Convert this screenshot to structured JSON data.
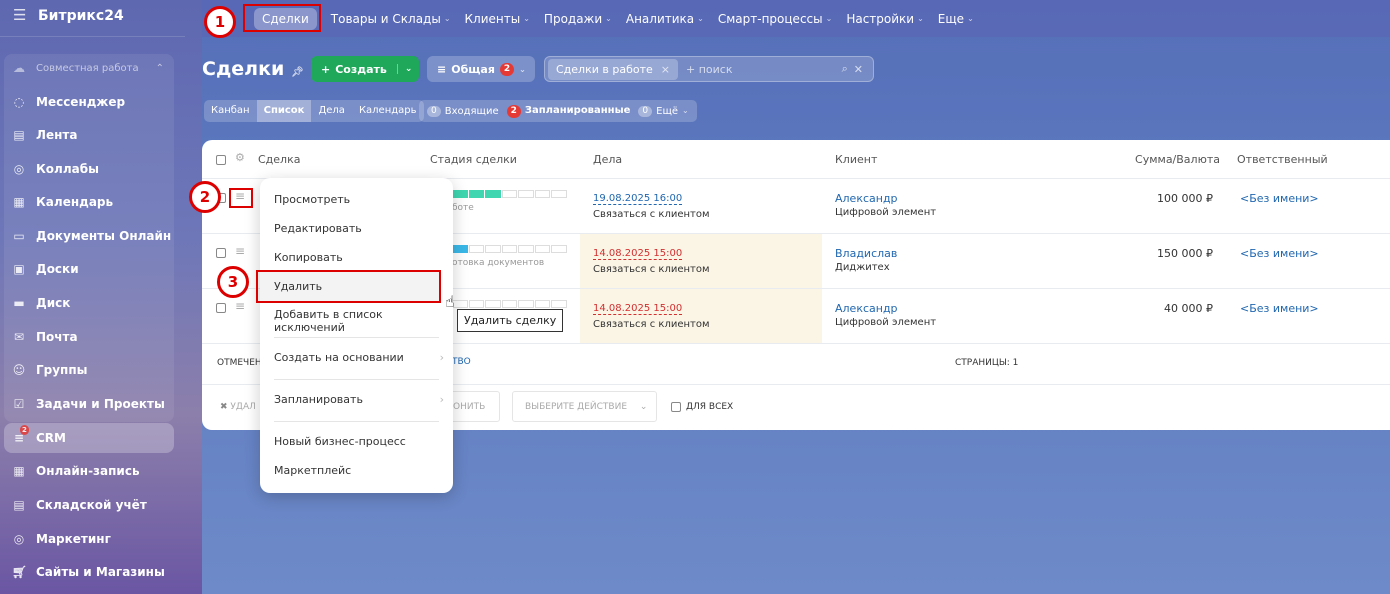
{
  "app": {
    "logo": "Битрикс24"
  },
  "sidebar": {
    "items": [
      {
        "label": "Совместная работа",
        "icon": "collab-icon"
      },
      {
        "label": "Мессенджер",
        "icon": "chat-icon"
      },
      {
        "label": "Лента",
        "icon": "feed-icon"
      },
      {
        "label": "Коллабы",
        "icon": "collab-circle-icon"
      },
      {
        "label": "Календарь",
        "icon": "calendar-icon"
      },
      {
        "label": "Документы Онлайн",
        "icon": "document-icon"
      },
      {
        "label": "Доски",
        "icon": "board-icon"
      },
      {
        "label": "Диск",
        "icon": "disk-icon"
      },
      {
        "label": "Почта",
        "icon": "mail-icon"
      },
      {
        "label": "Группы",
        "icon": "groups-icon"
      },
      {
        "label": "Задачи и Проекты",
        "icon": "tasks-icon"
      },
      {
        "label": "CRM",
        "icon": "crm-funnel-icon",
        "badge": "2"
      },
      {
        "label": "Онлайн-запись",
        "icon": "booking-icon"
      },
      {
        "label": "Складской учёт",
        "icon": "warehouse-icon"
      },
      {
        "label": "Маркетинг",
        "icon": "marketing-icon"
      },
      {
        "label": "Сайты и Магазины",
        "icon": "cart-icon"
      }
    ]
  },
  "topnav": {
    "items": [
      "Сделки",
      "Товары и Склады",
      "Клиенты",
      "Продажи",
      "Аналитика",
      "Смарт-процессы",
      "Настройки",
      "Еще"
    ]
  },
  "header": {
    "title": "Сделки",
    "create": "Создать",
    "filter": "Общая",
    "filter_badge": "2",
    "search_chip": "Сделки в работе",
    "search_placeholder": "+ поиск"
  },
  "views": [
    "Канбан",
    "Список",
    "Дела",
    "Календарь"
  ],
  "counters": [
    {
      "count": "0",
      "label": "Входящие"
    },
    {
      "count": "2",
      "label": "Запланированные"
    },
    {
      "count": "0",
      "label": "Ещё"
    }
  ],
  "table": {
    "columns": [
      "Сделка",
      "Стадия сделки",
      "Дела",
      "Клиент",
      "Сумма/Валюта",
      "Ответственный"
    ],
    "rows": [
      {
        "stage": "боте",
        "stage_progress": 3,
        "stage_color": "#3fd6b0",
        "date": "19.08.2025 16:00",
        "overdue": false,
        "task": "Связаться с клиентом",
        "client": "Александр",
        "company": "Цифровой элемент",
        "sum": "100 000 ₽",
        "owner": "<Без имени>"
      },
      {
        "stage": "отовка документов",
        "stage_progress": 1,
        "stage_color": "#3ab8e8",
        "date": "14.08.2025 15:00",
        "overdue": true,
        "task": "Связаться с клиентом",
        "client": "Владислав",
        "company": "Диджитех",
        "sum": "150 000 ₽",
        "owner": "<Без имени>"
      },
      {
        "stage": "",
        "stage_progress": 0,
        "stage_color": "#cccccc",
        "date": "14.08.2025 15:00",
        "overdue": true,
        "task": "Связаться с клиентом",
        "client": "Александр",
        "company": "Цифровой элемент",
        "sum": "40 000 ₽",
        "owner": "<Без имени>"
      }
    ],
    "footer": {
      "marked": "ОТМЕЧЕН",
      "count_fragment": "ТВО",
      "pages": "СТРАНИЦЫ: 1"
    },
    "actions": {
      "delete_fragment": "УДАЛ",
      "apply_fragment": "ОНИТЬ",
      "select_action": "ВЫБЕРИТЕ ДЕЙСТВИЕ",
      "for_all": "ДЛЯ ВСЕХ"
    }
  },
  "menu": {
    "items": [
      "Просмотреть",
      "Редактировать",
      "Копировать",
      "Удалить",
      "Добавить в список исключений",
      "Создать на основании",
      "Запланировать",
      "Новый бизнес-процесс",
      "Маркетплейс"
    ]
  },
  "tooltip": "Удалить сделку",
  "annotations": [
    "1",
    "2",
    "3"
  ]
}
